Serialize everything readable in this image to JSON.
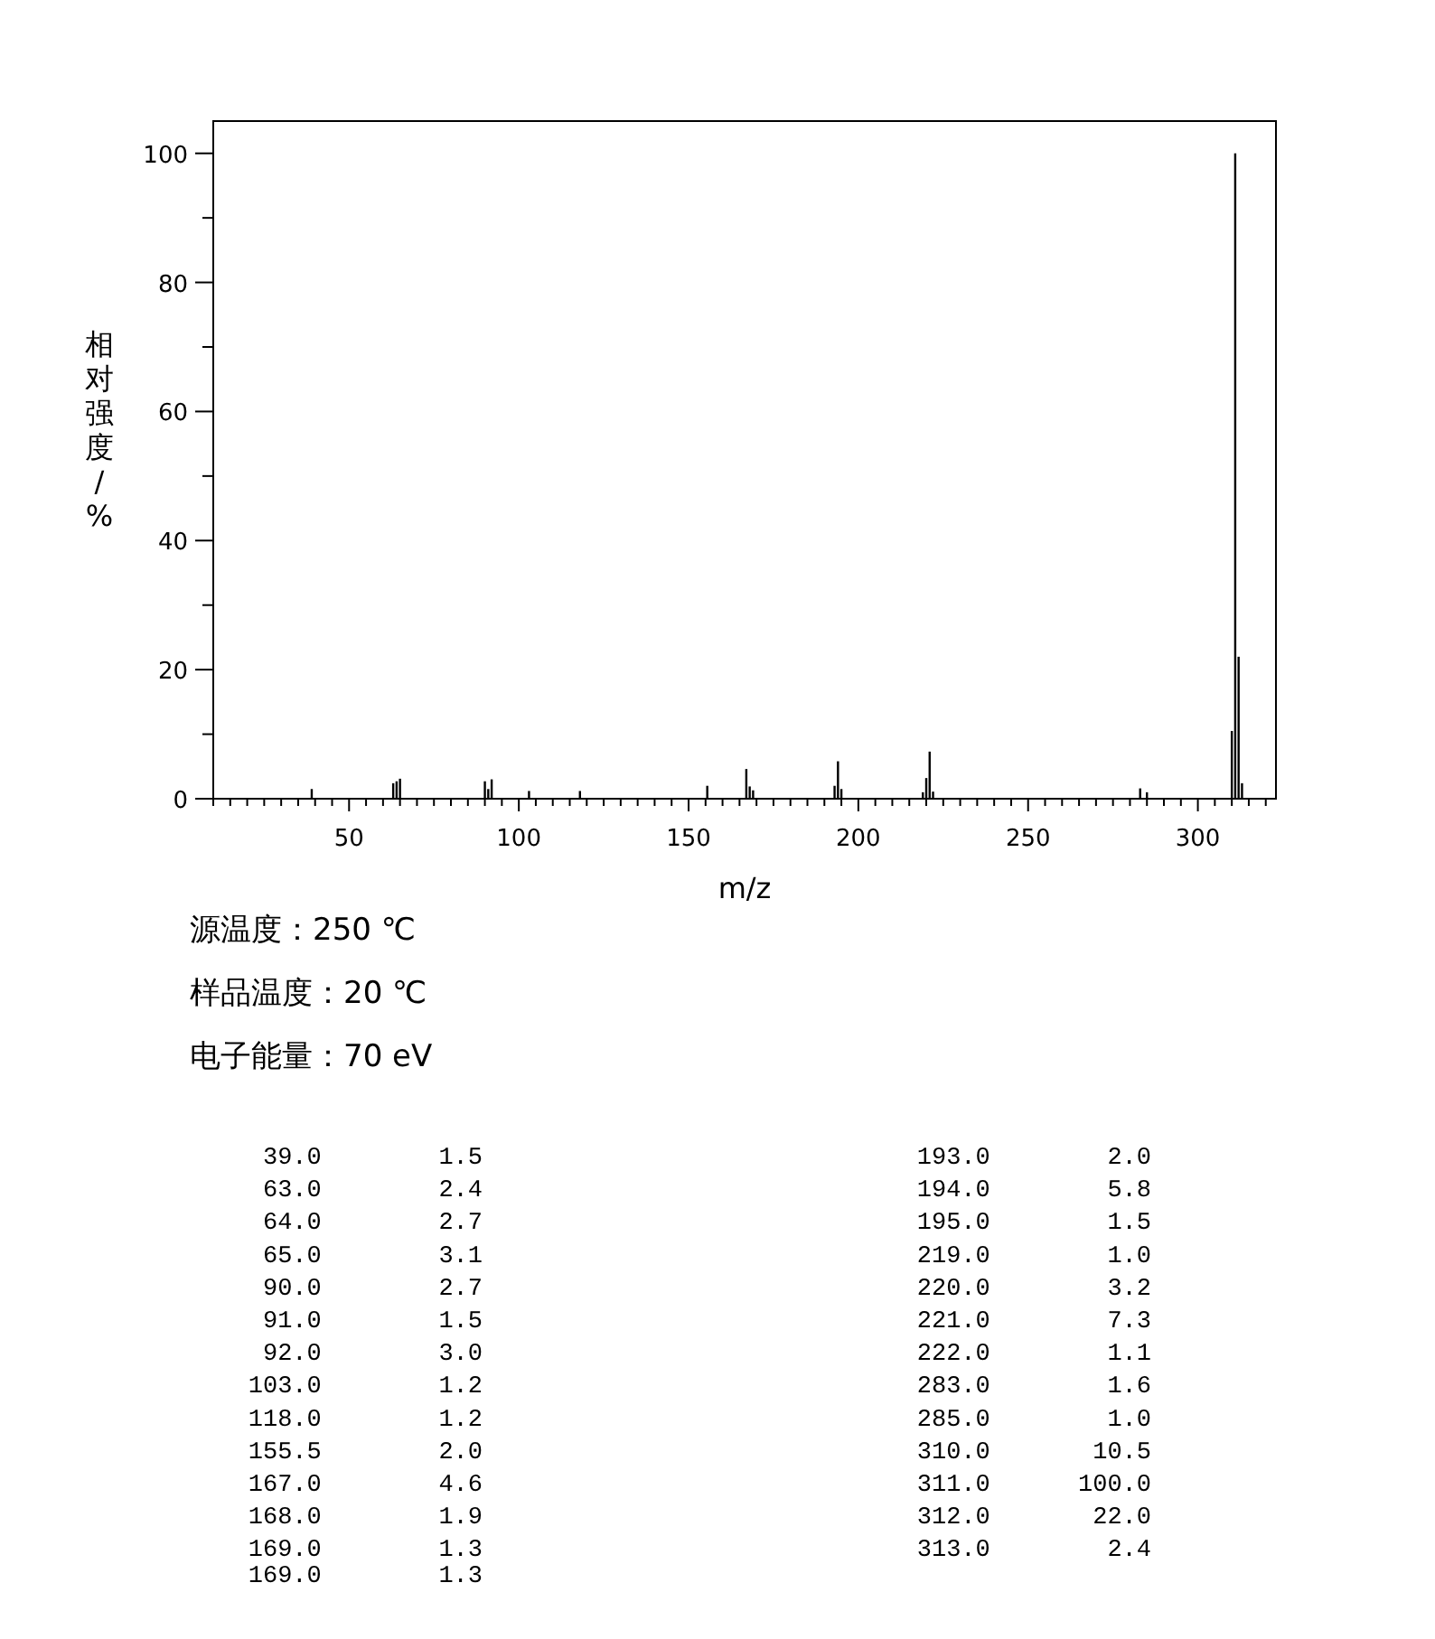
{
  "chart_data": {
    "type": "bar",
    "x": [
      39,
      63,
      64,
      65,
      90,
      91,
      92,
      103,
      118,
      155.5,
      167,
      168,
      169,
      193,
      194,
      195,
      219,
      220,
      221,
      222,
      283,
      285,
      310,
      311,
      312,
      313
    ],
    "series": [
      {
        "color": "#000000",
        "values": [
          1.5,
          2.4,
          2.7,
          3.1,
          2.7,
          1.5,
          3.0,
          1.2,
          1.2,
          2.0,
          4.6,
          1.9,
          1.3,
          2.0,
          5.8,
          1.5,
          1.0,
          3.2,
          7.3,
          1.1,
          1.6,
          1.0,
          10.5,
          100.0,
          22.0,
          2.4
        ]
      }
    ],
    "xlabel": "m/z",
    "ylabel": "相对强度/%",
    "xlim": [
      10,
      323
    ],
    "ylim": [
      0,
      105
    ],
    "xticks": [
      {
        "value": 10,
        "label": null
      },
      {
        "value": 15,
        "label": null
      },
      {
        "value": 20,
        "label": null
      },
      {
        "value": 25,
        "label": null
      },
      {
        "value": 30,
        "label": null
      },
      {
        "value": 35,
        "label": null
      },
      {
        "value": 40,
        "label": null
      },
      {
        "value": 45,
        "label": null
      },
      50,
      {
        "value": 55,
        "label": null
      },
      {
        "value": 60,
        "label": null
      },
      {
        "value": 65,
        "label": null
      },
      {
        "value": 70,
        "label": null
      },
      {
        "value": 75,
        "label": null
      },
      {
        "value": 80,
        "label": null
      },
      {
        "value": 85,
        "label": null
      },
      {
        "value": 90,
        "label": null
      },
      {
        "value": 95,
        "label": null
      },
      100,
      {
        "value": 105,
        "label": null
      },
      {
        "value": 110,
        "label": null
      },
      {
        "value": 115,
        "label": null
      },
      {
        "value": 120,
        "label": null
      },
      {
        "value": 125,
        "label": null
      },
      {
        "value": 130,
        "label": null
      },
      {
        "value": 135,
        "label": null
      },
      {
        "value": 140,
        "label": null
      },
      {
        "value": 145,
        "label": null
      },
      150,
      {
        "value": 155,
        "label": null
      },
      {
        "value": 160,
        "label": null
      },
      {
        "value": 165,
        "label": null
      },
      {
        "value": 170,
        "label": null
      },
      {
        "value": 175,
        "label": null
      },
      {
        "value": 180,
        "label": null
      },
      {
        "value": 185,
        "label": null
      },
      {
        "value": 190,
        "label": null
      },
      {
        "value": 195,
        "label": null
      },
      200,
      {
        "value": 205,
        "label": null
      },
      {
        "value": 210,
        "label": null
      },
      {
        "value": 215,
        "label": null
      },
      {
        "value": 220,
        "label": null
      },
      {
        "value": 225,
        "label": null
      },
      {
        "value": 230,
        "label": null
      },
      {
        "value": 235,
        "label": null
      },
      {
        "value": 240,
        "label": null
      },
      {
        "value": 245,
        "label": null
      },
      250,
      {
        "value": 255,
        "label": null
      },
      {
        "value": 260,
        "label": null
      },
      {
        "value": 265,
        "label": null
      },
      {
        "value": 270,
        "label": null
      },
      {
        "value": 275,
        "label": null
      },
      {
        "value": 280,
        "label": null
      },
      {
        "value": 285,
        "label": null
      },
      {
        "value": 290,
        "label": null
      },
      {
        "value": 295,
        "label": null
      },
      300,
      {
        "value": 305,
        "label": null
      },
      {
        "value": 310,
        "label": null
      },
      {
        "value": 315,
        "label": null
      },
      {
        "value": 320,
        "label": null
      }
    ],
    "yticks": [
      0,
      {
        "value": 10,
        "label": null
      },
      20,
      {
        "value": 30,
        "label": null
      },
      40,
      {
        "value": 50,
        "label": null
      },
      60,
      {
        "value": 70,
        "label": null
      },
      80,
      {
        "value": 90,
        "label": null
      },
      100
    ],
    "annotations": [
      "源温度：250 ℃",
      "样品温度：20 ℃",
      "电子能量：70 eV",
      " 39.0        1.5",
      " 63.0        2.4",
      " 64.0        2.7",
      " 65.0        3.1",
      " 90.0        2.7",
      " 91.0        1.5",
      " 92.0        3.0",
      "103.0        1.2",
      "118.0        1.2",
      "155.5        2.0",
      "167.0        4.6",
      "168.0        1.9",
      "169.0        1.3",
      "169.0        1.3",
      "193.0        2.0",
      "194.0        5.8",
      "195.0        1.5",
      "219.0        1.0",
      "220.0        3.2",
      "221.0        7.3",
      "222.0        1.1",
      "283.0        1.6",
      "285.0        1.0",
      "310.0       10.5",
      "311.0      100.0",
      "312.0       22.0",
      "313.0        2.4"
    ],
    "grid": false
  }
}
